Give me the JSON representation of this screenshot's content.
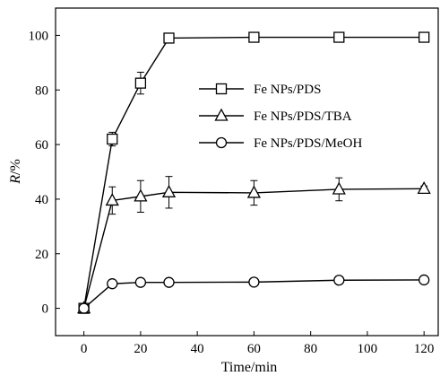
{
  "chart_data": {
    "type": "line",
    "title": "",
    "xlabel": "Time/min",
    "ylabel_italic": "R",
    "ylabel_rest": "/%",
    "xlim": [
      -10,
      125
    ],
    "ylim": [
      -10,
      110
    ],
    "xticks": [
      0,
      20,
      40,
      60,
      80,
      100,
      120
    ],
    "yticks": [
      0,
      20,
      40,
      60,
      80,
      100
    ],
    "grid": false,
    "legend_position": "center-right",
    "x": [
      0,
      10,
      20,
      30,
      60,
      90,
      120
    ],
    "series": [
      {
        "name": "Fe NPs/PDS",
        "marker": "square",
        "values": [
          0,
          62,
          82.5,
          99,
          99.3,
          99.3,
          99.3
        ],
        "errors": [
          0,
          2.5,
          4,
          1,
          0.5,
          1,
          0.5
        ]
      },
      {
        "name": "Fe NPs/PDS/TBA",
        "marker": "triangle",
        "values": [
          0,
          39.5,
          41,
          42.5,
          42.3,
          43.6,
          43.8
        ],
        "errors": [
          0,
          5,
          5.8,
          5.8,
          4.5,
          4.2,
          1
        ]
      },
      {
        "name": "Fe NPs/PDS/MeOH",
        "marker": "circle",
        "values": [
          0,
          9,
          9.5,
          9.5,
          9.6,
          10.3,
          10.4
        ],
        "errors": [
          0,
          1.2,
          1,
          1,
          0.6,
          0.6,
          0.5
        ]
      }
    ],
    "colors": {
      "line": "#000000",
      "marker_fill": "#ffffff"
    }
  }
}
